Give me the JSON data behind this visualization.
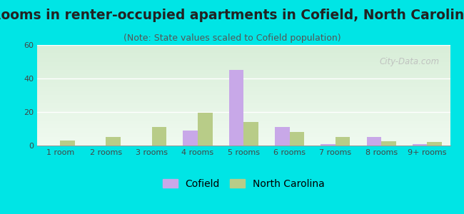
{
  "title": "Rooms in renter-occupied apartments in Cofield, North Carolina",
  "subtitle": "(Note: State values scaled to Cofield population)",
  "categories": [
    "1 room",
    "2 rooms",
    "3 rooms",
    "4 rooms",
    "5 rooms",
    "6 rooms",
    "7 rooms",
    "8 rooms",
    "9+ rooms"
  ],
  "cofield_values": [
    0,
    0,
    0,
    9,
    45,
    11,
    1,
    5,
    1
  ],
  "nc_values": [
    3,
    5,
    11,
    19.5,
    14,
    8,
    5,
    2.5,
    2
  ],
  "cofield_color": "#c8a8e8",
  "nc_color": "#b8cc88",
  "background_color": "#00e5e5",
  "plot_bg_color1": "#f0faf0",
  "plot_bg_color2": "#d8eed8",
  "ylim": [
    0,
    60
  ],
  "yticks": [
    0,
    20,
    40,
    60
  ],
  "bar_width": 0.32,
  "title_fontsize": 13.5,
  "subtitle_fontsize": 9,
  "tick_fontsize": 8,
  "legend_fontsize": 10,
  "watermark": "City-Data.com"
}
